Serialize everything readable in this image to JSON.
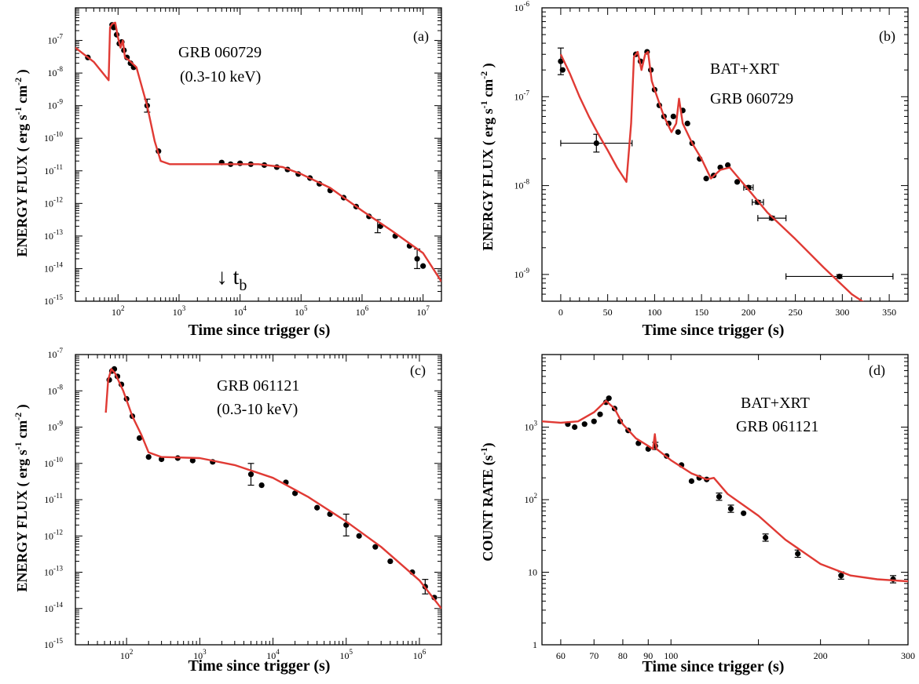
{
  "chart_data": [
    {
      "panel": "(a)",
      "type": "scatter",
      "title": "GRB 060729",
      "subtitle": "(0.3-10 keV)",
      "xlabel": "Time since trigger (s)",
      "ylabel": "ENERGY FLUX ( erg s-1 cm-2 )",
      "xscale": "log",
      "yscale": "log",
      "xlim": [
        20,
        20000000
      ],
      "ylim": [
        1e-15,
        1e-06
      ],
      "xticks": [
        2,
        3,
        4,
        5,
        6,
        7
      ],
      "yticks": [
        -15,
        -14,
        -13,
        -12,
        -11,
        -10,
        -9,
        -8,
        -7
      ],
      "annotation": {
        "arrow": "↓",
        "text": "t",
        "sub": "b",
        "x": 10000
      },
      "model": [
        [
          20,
          6e-08
        ],
        [
          40,
          2.2e-08
        ],
        [
          70,
          6e-09
        ],
        [
          74,
          2.5e-07
        ],
        [
          80,
          3.2e-07
        ],
        [
          90,
          3.5e-07
        ],
        [
          100,
          1.2e-07
        ],
        [
          110,
          6e-08
        ],
        [
          120,
          1e-07
        ],
        [
          130,
          3e-08
        ],
        [
          150,
          2.5e-08
        ],
        [
          200,
          1.5e-08
        ],
        [
          300,
          1e-09
        ],
        [
          400,
          8e-11
        ],
        [
          500,
          2e-11
        ],
        [
          700,
          1.6e-11
        ],
        [
          1000,
          1.6e-11
        ],
        [
          5000,
          1.6e-11
        ],
        [
          20000,
          1.6e-11
        ],
        [
          50000,
          1.3e-11
        ],
        [
          100000,
          8e-12
        ],
        [
          300000,
          3e-12
        ],
        [
          1000000,
          6e-13
        ],
        [
          3000000,
          1.5e-13
        ],
        [
          10000000,
          3e-14
        ],
        [
          20000000,
          4e-15
        ]
      ],
      "points": [
        [
          32,
          3e-08
        ],
        [
          80,
          3e-07
        ],
        [
          85,
          2.5e-07
        ],
        [
          95,
          1.5e-07
        ],
        [
          105,
          8e-08
        ],
        [
          115,
          9e-08
        ],
        [
          125,
          5e-08
        ],
        [
          140,
          3e-08
        ],
        [
          160,
          2e-08
        ],
        [
          180,
          1.5e-08
        ],
        [
          300,
          1e-09
        ],
        [
          460,
          4e-11
        ],
        [
          5000,
          1.8e-11
        ],
        [
          7000,
          1.6e-11
        ],
        [
          10000,
          1.7e-11
        ],
        [
          15000,
          1.6e-11
        ],
        [
          25000,
          1.5e-11
        ],
        [
          40000,
          1.3e-11
        ],
        [
          60000,
          1.1e-11
        ],
        [
          90000,
          8e-12
        ],
        [
          140000,
          6e-12
        ],
        [
          200000,
          4e-12
        ],
        [
          300000,
          2.5e-12
        ],
        [
          500000,
          1.5e-12
        ],
        [
          800000,
          8e-13
        ],
        [
          1300000,
          4e-13
        ],
        [
          2000000,
          2e-13
        ],
        [
          3500000,
          1e-13
        ],
        [
          6000000,
          5e-14
        ],
        [
          8000000,
          2e-14
        ],
        [
          10000000,
          1.2e-14
        ]
      ],
      "errors": [
        [
          300,
          1e-09,
          0.2
        ],
        [
          8000000,
          2e-14,
          0.3
        ],
        [
          1800000,
          2e-13,
          0.2
        ]
      ]
    },
    {
      "panel": "(b)",
      "type": "scatter",
      "title": "BAT+XRT",
      "subtitle": "GRB 060729",
      "xlabel": "Time since trigger (s)",
      "ylabel": "ENERGY FLUX ( erg s-1 cm-2 )",
      "xscale": "linear",
      "yscale": "log",
      "xlim": [
        -20,
        370
      ],
      "ylim": [
        5e-10,
        1e-06
      ],
      "xticks": [
        0,
        50,
        100,
        150,
        200,
        250,
        300,
        350
      ],
      "yticks": [
        -9,
        -8,
        -7,
        -6
      ],
      "model": [
        [
          0,
          3e-07
        ],
        [
          10,
          1.8e-07
        ],
        [
          20,
          1e-07
        ],
        [
          30,
          6e-08
        ],
        [
          40,
          3.8e-08
        ],
        [
          50,
          2.5e-08
        ],
        [
          60,
          1.6e-08
        ],
        [
          70,
          1.1e-08
        ],
        [
          75,
          5e-08
        ],
        [
          78,
          2.8e-07
        ],
        [
          82,
          3.2e-07
        ],
        [
          86,
          2e-07
        ],
        [
          90,
          3e-07
        ],
        [
          93,
          3.2e-07
        ],
        [
          97,
          1.5e-07
        ],
        [
          100,
          1.2e-07
        ],
        [
          110,
          6e-08
        ],
        [
          118,
          4e-08
        ],
        [
          123,
          5e-08
        ],
        [
          126,
          9.5e-08
        ],
        [
          130,
          5e-08
        ],
        [
          140,
          3e-08
        ],
        [
          150,
          2e-08
        ],
        [
          160,
          1.2e-08
        ],
        [
          170,
          1.5e-08
        ],
        [
          180,
          1.6e-08
        ],
        [
          190,
          1.2e-08
        ],
        [
          200,
          9e-09
        ],
        [
          220,
          5e-09
        ],
        [
          250,
          2.5e-09
        ],
        [
          280,
          1.2e-09
        ],
        [
          310,
          6e-10
        ],
        [
          335,
          4e-10
        ]
      ],
      "points": [
        [
          0,
          2.5e-07
        ],
        [
          2,
          2e-07
        ],
        [
          38,
          3e-08
        ],
        [
          80,
          3e-07
        ],
        [
          85,
          2.5e-07
        ],
        [
          92,
          3.2e-07
        ],
        [
          96,
          2e-07
        ],
        [
          100,
          1.2e-07
        ],
        [
          105,
          8e-08
        ],
        [
          110,
          6e-08
        ],
        [
          115,
          5e-08
        ],
        [
          120,
          6e-08
        ],
        [
          125,
          4e-08
        ],
        [
          130,
          7e-08
        ],
        [
          135,
          5e-08
        ],
        [
          140,
          3e-08
        ],
        [
          148,
          2e-08
        ],
        [
          155,
          1.2e-08
        ],
        [
          163,
          1.3e-08
        ],
        [
          170,
          1.6e-08
        ],
        [
          178,
          1.7e-08
        ],
        [
          188,
          1.1e-08
        ],
        [
          200,
          9.5e-09
        ],
        [
          210,
          6.5e-09
        ],
        [
          225,
          4.3e-09
        ],
        [
          297,
          9.5e-10
        ]
      ],
      "errors": [
        [
          38,
          3e-08,
          0.1,
          38
        ],
        [
          297,
          9.5e-10,
          0.02,
          57
        ],
        [
          225,
          4.3e-09,
          0.02,
          15
        ],
        [
          210,
          6.5e-09,
          0.02,
          6
        ],
        [
          200,
          9.5e-09,
          0.02,
          5
        ],
        [
          0,
          2.5e-07,
          0.15,
          0
        ]
      ]
    },
    {
      "panel": "(c)",
      "type": "scatter",
      "title": "GRB 061121",
      "subtitle": "(0.3-10 keV)",
      "xlabel": "Time since trigger (s)",
      "ylabel": "ENERGY FLUX ( erg s-1 cm-2 )",
      "xscale": "log",
      "yscale": "log",
      "xlim": [
        20,
        2000000
      ],
      "ylim": [
        1e-15,
        1e-07
      ],
      "xticks": [
        2,
        3,
        4,
        5,
        6
      ],
      "yticks": [
        -15,
        -14,
        -13,
        -12,
        -11,
        -10,
        -9,
        -8,
        -7
      ],
      "model": [
        [
          52,
          2.5e-09
        ],
        [
          56,
          2e-08
        ],
        [
          62,
          4e-08
        ],
        [
          70,
          3e-08
        ],
        [
          90,
          1e-08
        ],
        [
          120,
          2e-09
        ],
        [
          160,
          6e-10
        ],
        [
          200,
          2e-10
        ],
        [
          300,
          1.5e-10
        ],
        [
          1000,
          1.4e-10
        ],
        [
          3000,
          9e-11
        ],
        [
          10000,
          4e-11
        ],
        [
          30000,
          1.2e-11
        ],
        [
          100000,
          2.5e-12
        ],
        [
          300000,
          5e-13
        ],
        [
          1000000,
          6e-14
        ],
        [
          2000000,
          1e-14
        ]
      ],
      "points": [
        [
          58,
          2e-08
        ],
        [
          63,
          3.5e-08
        ],
        [
          68,
          4e-08
        ],
        [
          75,
          2.5e-08
        ],
        [
          85,
          1.5e-08
        ],
        [
          100,
          6e-09
        ],
        [
          120,
          2e-09
        ],
        [
          150,
          5e-10
        ],
        [
          200,
          1.5e-10
        ],
        [
          300,
          1.3e-10
        ],
        [
          500,
          1.4e-10
        ],
        [
          800,
          1.2e-10
        ],
        [
          1500,
          1.1e-10
        ],
        [
          5000,
          5e-11
        ],
        [
          7000,
          2.5e-11
        ],
        [
          15000,
          3e-11
        ],
        [
          20000,
          1.5e-11
        ],
        [
          40000,
          6e-12
        ],
        [
          60000,
          4e-12
        ],
        [
          100000,
          2e-12
        ],
        [
          150000,
          1e-12
        ],
        [
          250000,
          5e-13
        ],
        [
          400000,
          2e-13
        ],
        [
          800000,
          1e-13
        ],
        [
          1200000,
          4e-14
        ],
        [
          1600000,
          2e-14
        ]
      ],
      "errors": [
        [
          5000,
          5e-11,
          0.3
        ],
        [
          100000,
          2e-12,
          0.3
        ],
        [
          1200000,
          4e-14,
          0.2
        ]
      ]
    },
    {
      "panel": "(d)",
      "type": "scatter",
      "title": "BAT+XRT",
      "subtitle": "GRB 061121",
      "xlabel": "Time since trigger (s)",
      "ylabel": "COUNT RATE (s-1)",
      "xscale": "log",
      "yscale": "log",
      "xlim": [
        55,
        300
      ],
      "ylim": [
        1,
        10000
      ],
      "xticks": [
        60,
        70,
        80,
        90,
        100,
        200,
        300
      ],
      "yticks": [
        1,
        10,
        100,
        1000
      ],
      "model": [
        [
          55,
          1200
        ],
        [
          60,
          1150
        ],
        [
          65,
          1200
        ],
        [
          70,
          1600
        ],
        [
          74,
          2300
        ],
        [
          77,
          1800
        ],
        [
          80,
          1100
        ],
        [
          85,
          700
        ],
        [
          90,
          550
        ],
        [
          92,
          500
        ],
        [
          92.8,
          800
        ],
        [
          93.5,
          500
        ],
        [
          100,
          350
        ],
        [
          110,
          230
        ],
        [
          118,
          190
        ],
        [
          122,
          200
        ],
        [
          130,
          120
        ],
        [
          150,
          60
        ],
        [
          170,
          28
        ],
        [
          200,
          13
        ],
        [
          230,
          9
        ],
        [
          260,
          8
        ],
        [
          300,
          7.5
        ]
      ],
      "points": [
        [
          62,
          1100
        ],
        [
          64,
          1000
        ],
        [
          67,
          1100
        ],
        [
          70,
          1200
        ],
        [
          72,
          1500
        ],
        [
          74,
          2200
        ],
        [
          75,
          2500
        ],
        [
          77,
          1800
        ],
        [
          79,
          1200
        ],
        [
          82,
          900
        ],
        [
          86,
          600
        ],
        [
          90,
          500
        ],
        [
          93,
          550
        ],
        [
          98,
          400
        ],
        [
          105,
          300
        ],
        [
          110,
          180
        ],
        [
          114,
          200
        ],
        [
          118,
          190
        ],
        [
          125,
          110
        ],
        [
          132,
          75
        ],
        [
          140,
          65
        ],
        [
          155,
          30
        ],
        [
          180,
          18
        ],
        [
          220,
          9
        ],
        [
          280,
          8
        ]
      ],
      "errors": [
        [
          93,
          550,
          0.05
        ],
        [
          125,
          110,
          0.05
        ],
        [
          132,
          75,
          0.05
        ],
        [
          155,
          30,
          0.05
        ],
        [
          180,
          18,
          0.05
        ],
        [
          220,
          9,
          0.05
        ],
        [
          280,
          8,
          0.05
        ]
      ]
    }
  ]
}
